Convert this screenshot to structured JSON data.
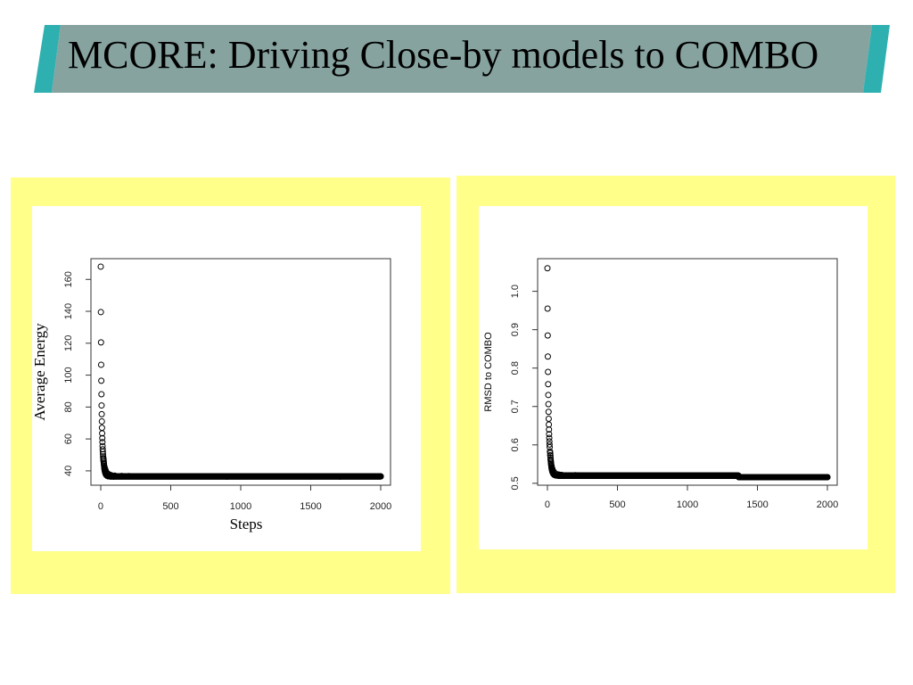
{
  "slide": {
    "title": "MCORE: Driving Close-by models to COMBO",
    "colors": {
      "banner": "#86a39f",
      "banner_accent": "#2fb0b0",
      "panel": "#ffff8a"
    }
  },
  "chart_data": [
    {
      "type": "scatter",
      "xlabel": "Steps",
      "ylabel": "Average Energy",
      "xlim": [
        -70,
        2070
      ],
      "ylim": [
        31,
        173
      ],
      "x_ticks": [
        "0",
        "500",
        "1000",
        "1500",
        "2000"
      ],
      "x_tick_values": [
        0,
        500,
        1000,
        1500,
        2000
      ],
      "y_ticks": [
        "40",
        "60",
        "80",
        "100",
        "120",
        "140",
        "160"
      ],
      "y_tick_values": [
        40,
        60,
        80,
        100,
        120,
        140,
        160
      ],
      "marker": "open-circle",
      "decay": {
        "start": 168,
        "plateau": 36.5,
        "tau": 8,
        "x_max": 2000
      },
      "points": [
        [
          0,
          168
        ],
        [
          1,
          139.5
        ],
        [
          2,
          120.5
        ],
        [
          3,
          106.5
        ],
        [
          4,
          96.5
        ],
        [
          5,
          88
        ],
        [
          6,
          81
        ],
        [
          7,
          75.5
        ],
        [
          8,
          71
        ],
        [
          9,
          67
        ],
        [
          10,
          63.5
        ],
        [
          11,
          60.5
        ],
        [
          12,
          58
        ],
        [
          13,
          55.5
        ],
        [
          14,
          53.5
        ],
        [
          15,
          52
        ],
        [
          16,
          50.5
        ],
        [
          17,
          49
        ],
        [
          18,
          48
        ],
        [
          19,
          47
        ],
        [
          20,
          46
        ],
        [
          22,
          44.5
        ],
        [
          25,
          43
        ],
        [
          28,
          42
        ],
        [
          32,
          41
        ],
        [
          36,
          40
        ],
        [
          42,
          39
        ],
        [
          50,
          38.2
        ],
        [
          60,
          37.8
        ],
        [
          75,
          37.3
        ],
        [
          100,
          37
        ],
        [
          150,
          36.8
        ],
        [
          200,
          36.7
        ],
        [
          300,
          36.5
        ],
        [
          500,
          36.5
        ],
        [
          1000,
          36.5
        ],
        [
          1500,
          36.5
        ],
        [
          2000,
          36.5
        ]
      ],
      "grid": false,
      "legend": "none"
    },
    {
      "type": "scatter",
      "xlabel": "",
      "ylabel": "RMSD to COMBO",
      "xlim": [
        -70,
        2070
      ],
      "ylim": [
        0.495,
        1.085
      ],
      "x_ticks": [
        "0",
        "500",
        "1000",
        "1500",
        "2000"
      ],
      "x_tick_values": [
        0,
        500,
        1000,
        1500,
        2000
      ],
      "y_ticks": [
        "0.5",
        "0.6",
        "0.7",
        "0.8",
        "0.9",
        "1.0"
      ],
      "y_tick_values": [
        0.5,
        0.6,
        0.7,
        0.8,
        0.9,
        1.0
      ],
      "marker": "open-circle",
      "decay": {
        "start": 1.06,
        "plateau": 0.52,
        "tau": 9,
        "x_max": 2000
      },
      "points": [
        [
          0,
          1.06
        ],
        [
          1,
          0.955
        ],
        [
          2,
          0.885
        ],
        [
          3,
          0.83
        ],
        [
          4,
          0.79
        ],
        [
          5,
          0.758
        ],
        [
          6,
          0.73
        ],
        [
          7,
          0.706
        ],
        [
          8,
          0.686
        ],
        [
          9,
          0.668
        ],
        [
          10,
          0.653
        ],
        [
          11,
          0.64
        ],
        [
          12,
          0.628
        ],
        [
          13,
          0.618
        ],
        [
          14,
          0.609
        ],
        [
          15,
          0.601
        ],
        [
          16,
          0.594
        ],
        [
          18,
          0.583
        ],
        [
          20,
          0.573
        ],
        [
          23,
          0.562
        ],
        [
          26,
          0.553
        ],
        [
          30,
          0.545
        ],
        [
          35,
          0.538
        ],
        [
          40,
          0.533
        ],
        [
          50,
          0.528
        ],
        [
          60,
          0.525
        ],
        [
          80,
          0.523
        ],
        [
          100,
          0.522
        ],
        [
          200,
          0.521
        ],
        [
          500,
          0.52
        ],
        [
          1000,
          0.52
        ],
        [
          1350,
          0.52
        ],
        [
          1370,
          0.516
        ],
        [
          2000,
          0.516
        ]
      ],
      "grid": false,
      "legend": "none"
    }
  ]
}
